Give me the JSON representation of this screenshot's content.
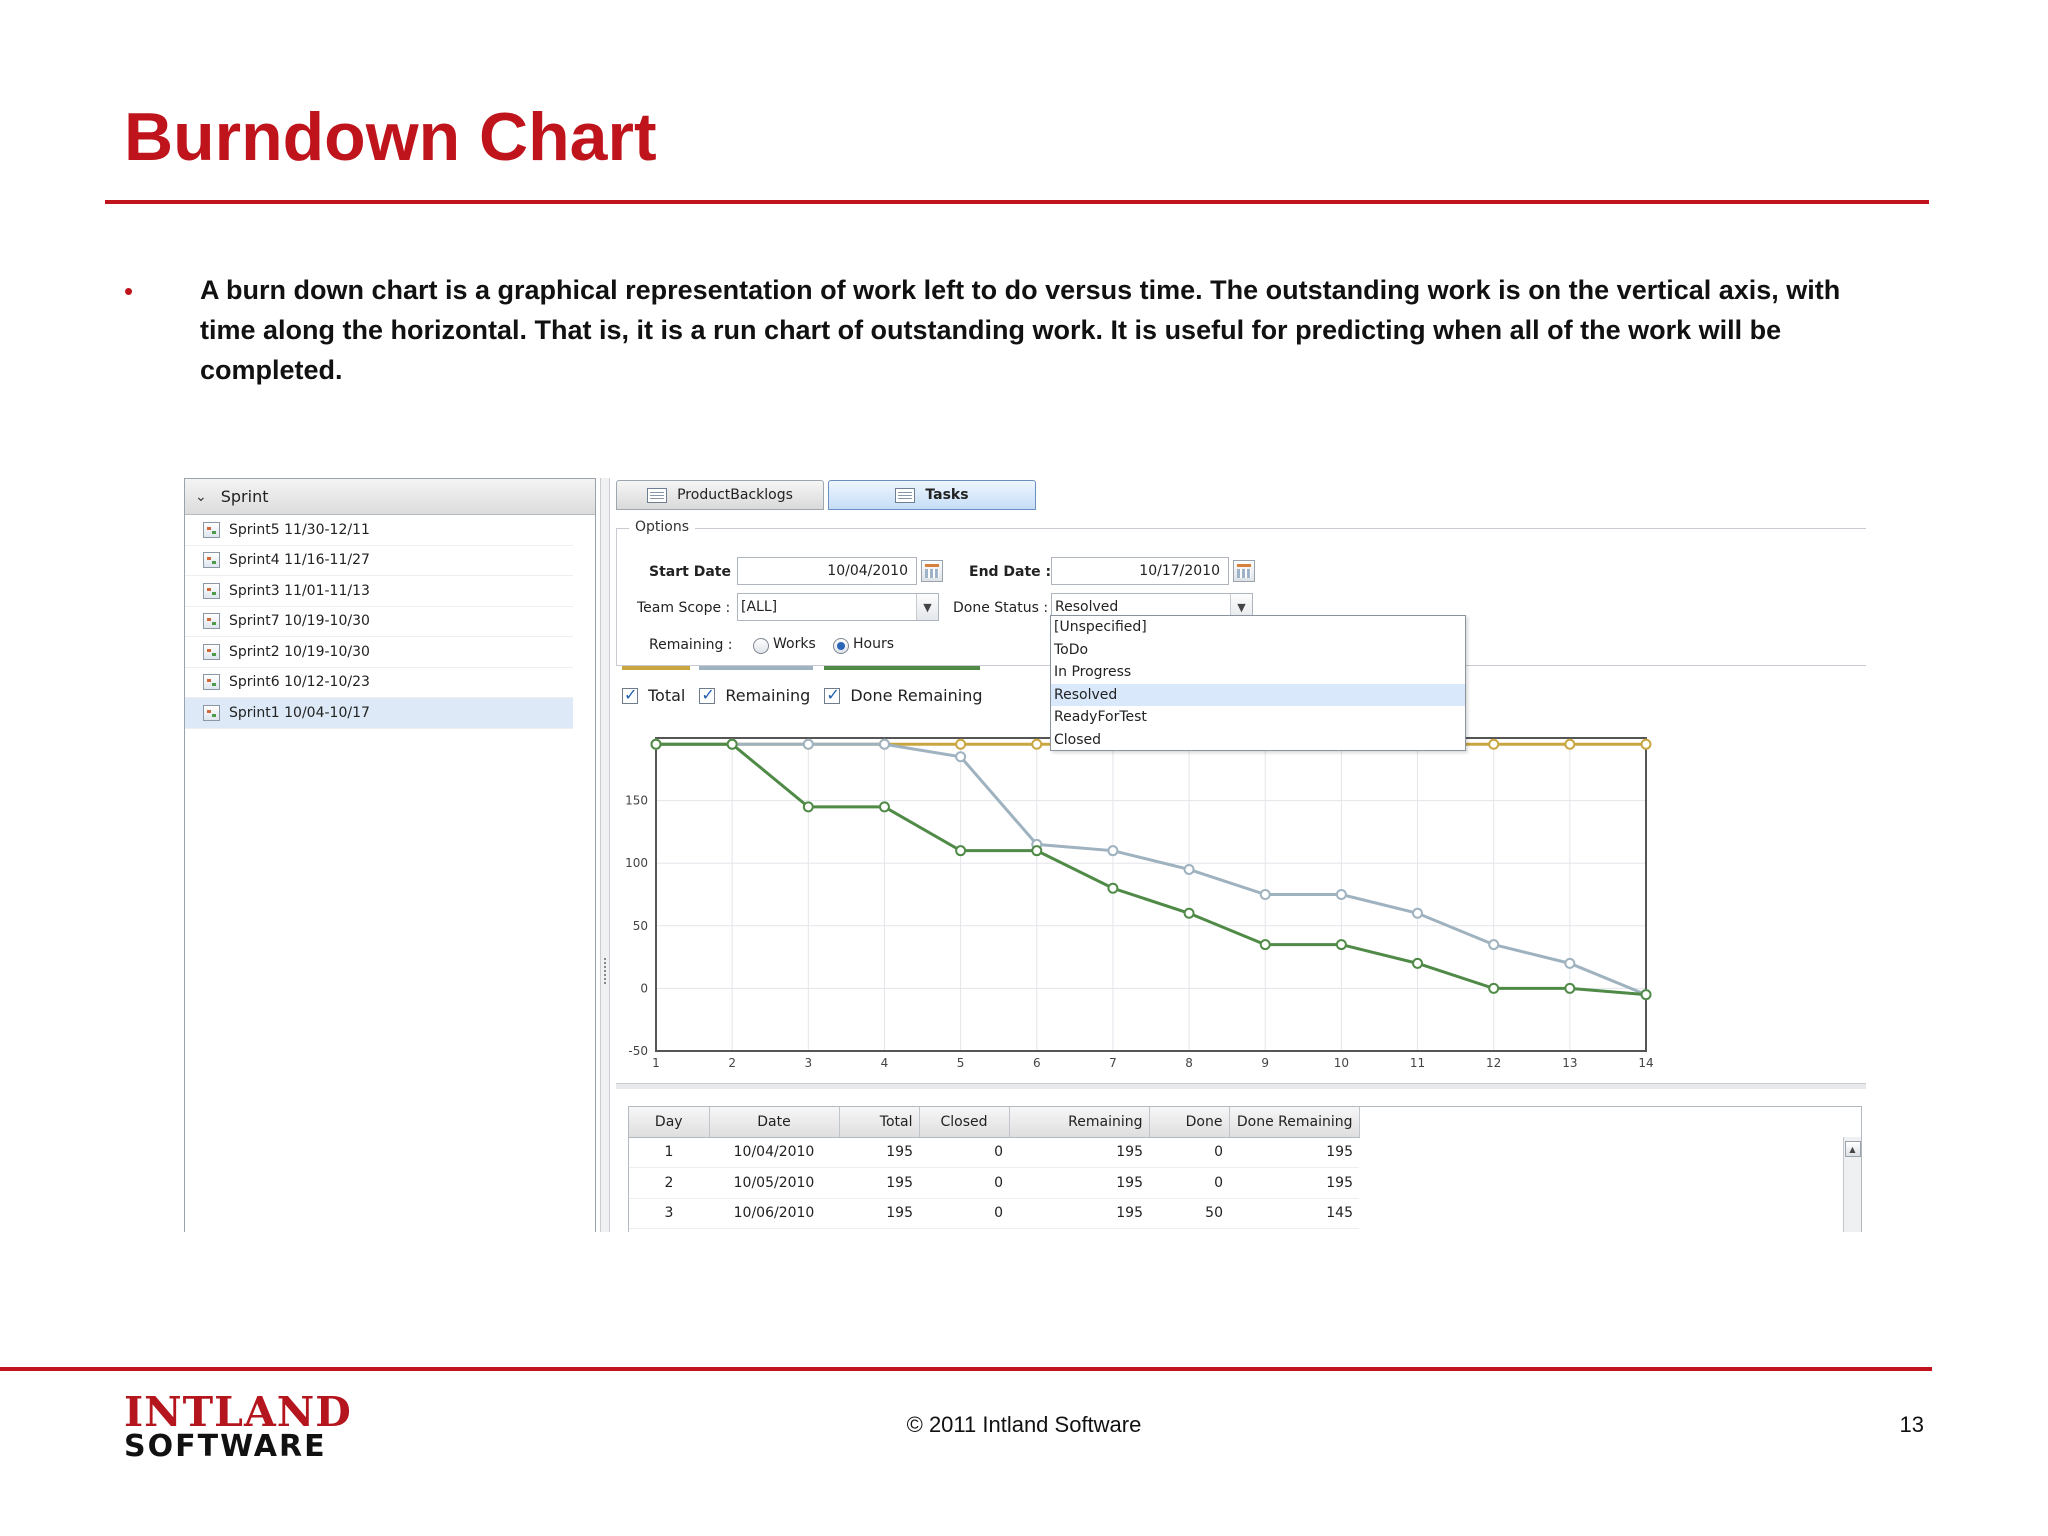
{
  "slide": {
    "title": "Burndown Chart",
    "bullet_marker": "•",
    "bullet": "A burn down chart is a graphical representation of work left to do versus time. The outstanding work is on the vertical axis, with time along the horizontal. That is, it is a run chart of outstanding work. It is useful for predicting when all of the work will be completed.",
    "footer": "© 2011 Intland Software",
    "page_number": "13",
    "logo": {
      "top": "INTLAND",
      "bottom": "SOFTWARE"
    }
  },
  "left_panel": {
    "header": "Sprint",
    "items": [
      {
        "label": "Sprint5 11/30-12/11",
        "selected": false
      },
      {
        "label": "Sprint4 11/16-11/27",
        "selected": false
      },
      {
        "label": "Sprint3 11/01-11/13",
        "selected": false
      },
      {
        "label": "Sprint7 10/19-10/30",
        "selected": false
      },
      {
        "label": "Sprint2 10/19-10/30",
        "selected": false
      },
      {
        "label": "Sprint6 10/12-10/23",
        "selected": false
      },
      {
        "label": "Sprint1 10/04-10/17",
        "selected": true
      }
    ]
  },
  "tabs": [
    {
      "label": "ProductBacklogs",
      "active": false
    },
    {
      "label": "Tasks",
      "active": true
    }
  ],
  "options": {
    "legend": "Options",
    "start_date_label": "Start Date :",
    "start_date": "10/04/2010",
    "end_date_label": "End Date :",
    "end_date": "10/17/2010",
    "team_scope_label": "Team Scope :",
    "team_scope": "[ALL]",
    "done_status_label": "Done Status :",
    "done_status": "Resolved",
    "done_status_options": [
      "[Unspecified]",
      "ToDo",
      "In Progress",
      "Resolved",
      "ReadyForTest",
      "Closed"
    ],
    "remaining_label": "Remaining :",
    "remaining_options": [
      "Works",
      "Hours"
    ],
    "remaining_selected": "Hours"
  },
  "colors": {
    "accent": "#c0141c",
    "total": "#c9a640",
    "remaining": "#9fb2c0",
    "done_remaining": "#4f8a47"
  },
  "chart_data": {
    "type": "line",
    "x": [
      1,
      2,
      3,
      4,
      5,
      6,
      7,
      8,
      9,
      10,
      11,
      12,
      13,
      14
    ],
    "series": [
      {
        "name": "Total",
        "values": [
          195,
          195,
          195,
          195,
          195,
          195,
          195,
          195,
          195,
          195,
          195,
          195,
          195,
          195
        ]
      },
      {
        "name": "Remaining",
        "values": [
          195,
          195,
          195,
          195,
          185,
          115,
          110,
          95,
          75,
          75,
          60,
          35,
          20,
          -5
        ]
      },
      {
        "name": "Done Remaining",
        "values": [
          195,
          195,
          145,
          145,
          110,
          110,
          80,
          60,
          35,
          35,
          20,
          0,
          0,
          -5
        ]
      }
    ],
    "ylim": [
      -50,
      200
    ],
    "yticks": [
      -50,
      0,
      50,
      100,
      150
    ],
    "xticks": [
      "1",
      "2",
      "3",
      "4",
      "5",
      "6",
      "7",
      "8",
      "9",
      "10",
      "11",
      "12",
      "13",
      "14"
    ],
    "grid": true,
    "legend_placement": "top-left"
  },
  "table": {
    "columns": [
      "Day",
      "Date",
      "Total",
      "Closed",
      "Remaining",
      "Done",
      "Done Remaining"
    ],
    "rows": [
      [
        "1",
        "10/04/2010",
        "195",
        "0",
        "195",
        "0",
        "195"
      ],
      [
        "2",
        "10/05/2010",
        "195",
        "0",
        "195",
        "0",
        "195"
      ],
      [
        "3",
        "10/06/2010",
        "195",
        "0",
        "195",
        "50",
        "145"
      ]
    ]
  }
}
